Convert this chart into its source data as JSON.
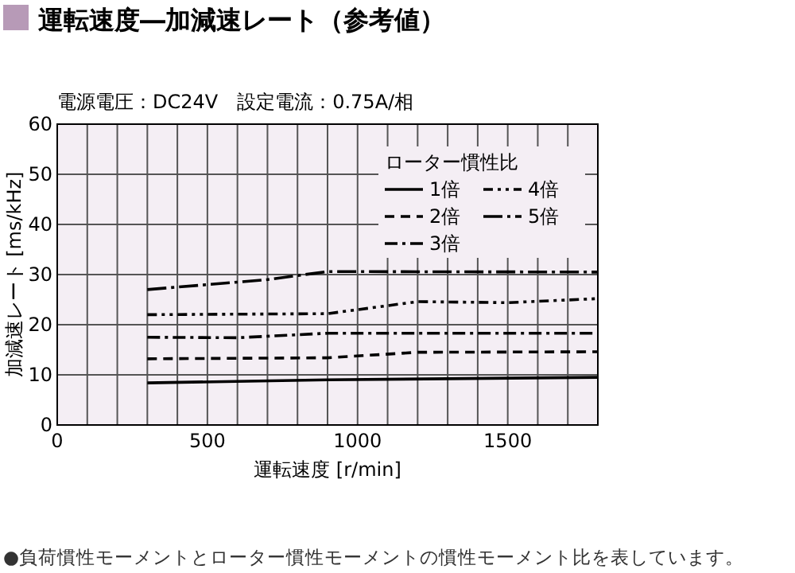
{
  "chart_data": {
    "type": "line",
    "title": "運転速度―加減速レート（参考値）",
    "subtitle": "電源電圧：DC24V　設定電流：0.75A/相",
    "xlabel": "運転速度 [r/min]",
    "ylabel": "加減速レート [ms/kHz]",
    "legend_title": "ローター慣性比",
    "xlim": [
      0,
      1800
    ],
    "xticks": [
      0,
      500,
      1000,
      1500
    ],
    "ylim": [
      0,
      60
    ],
    "yticks": [
      0,
      10,
      20,
      30,
      40,
      50,
      60
    ],
    "grid": true,
    "legend": "top right",
    "marker": "none",
    "series": [
      {
        "name": "1倍",
        "color": "#000000",
        "line_style": "solid",
        "x": [
          300,
          900,
          1800
        ],
        "values": [
          8.4,
          9,
          9.5
        ]
      },
      {
        "name": "2倍",
        "color": "#000000",
        "line_style": "dashed",
        "x": [
          300,
          900,
          1200,
          1800
        ],
        "values": [
          13.2,
          13.4,
          14.5,
          14.6
        ]
      },
      {
        "name": "3倍",
        "color": "#000000",
        "line_style": "dashdot",
        "x": [
          300,
          600,
          900,
          1800
        ],
        "values": [
          17.5,
          17.4,
          18.3,
          18.3
        ]
      },
      {
        "name": "4倍",
        "color": "#000000",
        "line_style": "dashdotdot",
        "x": [
          300,
          900,
          1200,
          1500,
          1800
        ],
        "values": [
          22,
          22.2,
          24.6,
          24.4,
          25.2
        ]
      },
      {
        "name": "5倍",
        "color": "#000000",
        "line_style": "longdashdot",
        "x": [
          300,
          700,
          900,
          1800
        ],
        "values": [
          27,
          29,
          30.6,
          30.5
        ]
      }
    ],
    "annotations": [
      "●負荷慣性モーメントとローター慣性モーメントの慣性モーメント比を表しています。"
    ]
  }
}
